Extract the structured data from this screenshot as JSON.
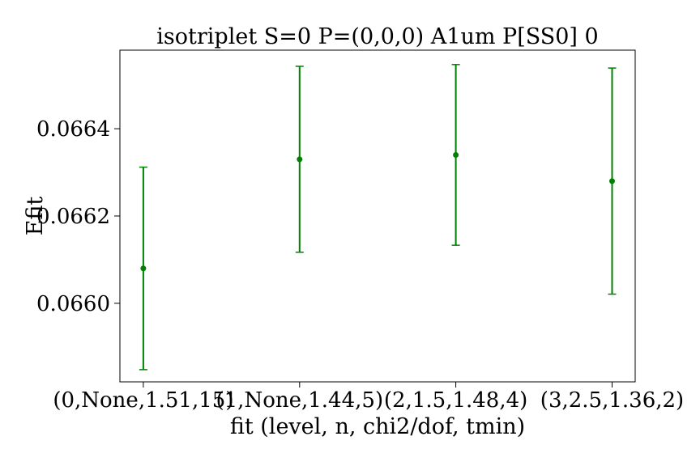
{
  "chart_data": {
    "type": "scatter",
    "title": "isotriplet S=0 P=(0,0,0) A1um P[SS0] 0",
    "xlabel": "fit (level, n, chi2/dof, tmin)",
    "ylabel": "Efit",
    "categories": [
      "(0,None,1.51,15)",
      "(1,None,1.44,5)",
      "(2,1.5,1.48,4)",
      "(3,2.5,1.36,2)"
    ],
    "values": [
      0.06608,
      0.06633,
      0.06634,
      0.06628
    ],
    "errors": [
      0.000232,
      0.000213,
      0.000207,
      0.000259
    ],
    "ylim": [
      0.06582,
      0.06658
    ],
    "yticks": [
      0.066,
      0.0662,
      0.0664
    ],
    "ytick_labels": [
      "0.0660",
      "0.0662",
      "0.0664"
    ],
    "color": "#008000",
    "grid": false
  }
}
